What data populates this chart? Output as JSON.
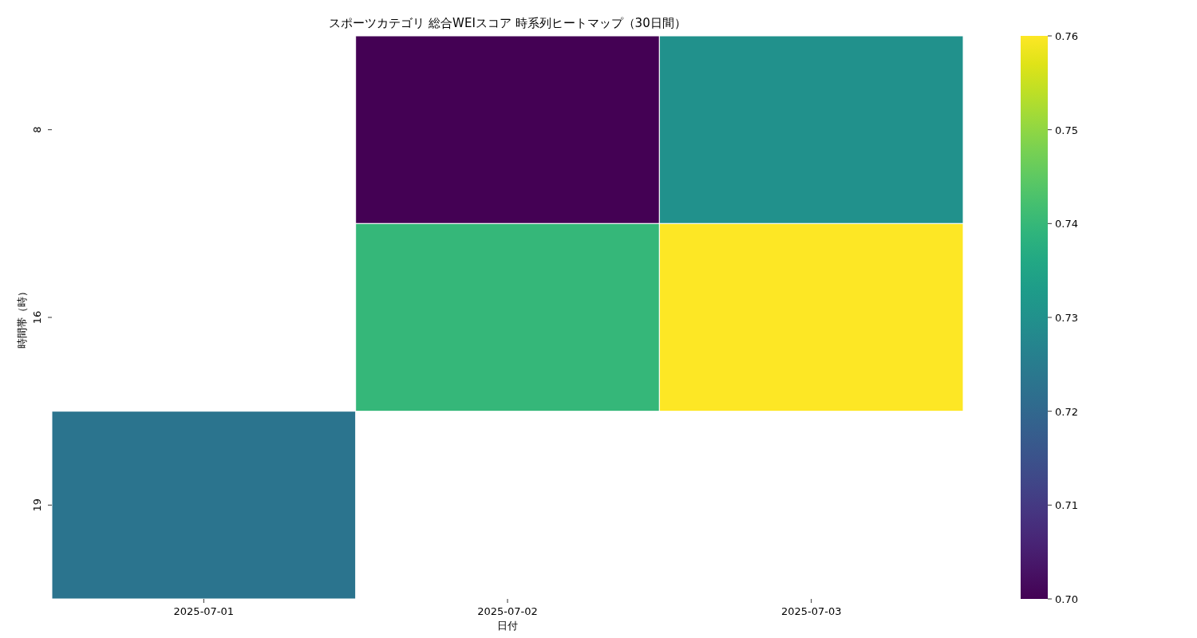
{
  "chart_data": {
    "type": "heatmap",
    "title": "スポーツカテゴリ 総合WEIスコア 時系列ヒートマップ（30日間）",
    "xlabel": "日付",
    "ylabel": "時間帯（時）",
    "categories": [
      "2025-07-01",
      "2025-07-02",
      "2025-07-03"
    ],
    "y_categories": [
      "8",
      "16",
      "19"
    ],
    "cells": [
      [
        null,
        0.7,
        0.73
      ],
      [
        null,
        0.74,
        0.76
      ],
      [
        0.723,
        null,
        null
      ]
    ],
    "clim": [
      0.7,
      0.76
    ],
    "cticks": [
      {
        "value": 0.7,
        "label": "0.70"
      },
      {
        "value": 0.71,
        "label": "0.71"
      },
      {
        "value": 0.72,
        "label": "0.72"
      },
      {
        "value": 0.73,
        "label": "0.73"
      },
      {
        "value": 0.74,
        "label": "0.74"
      },
      {
        "value": 0.75,
        "label": "0.75"
      },
      {
        "value": 0.76,
        "label": "0.76"
      }
    ]
  }
}
